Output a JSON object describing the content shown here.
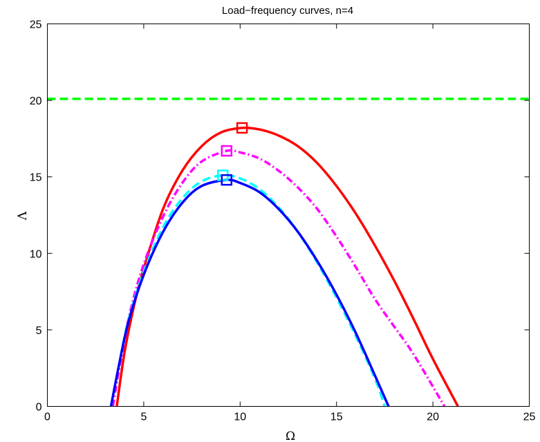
{
  "chart_data": {
    "type": "line",
    "title": "Load−frequency curves, n=4",
    "xlabel": "Ω",
    "ylabel": "Λ",
    "xlim": [
      0,
      25
    ],
    "ylim": [
      0,
      25
    ],
    "xticks": [
      "0",
      "5",
      "10",
      "15",
      "20",
      "25"
    ],
    "yticks": [
      "0",
      "5",
      "10",
      "15",
      "20",
      "25"
    ],
    "grid": false,
    "legend": "none",
    "series": [
      {
        "color": "#ff0000",
        "style": "solid",
        "points": [
          [
            3.6,
            0
          ],
          [
            4.0,
            3.5
          ],
          [
            4.5,
            6.6
          ],
          [
            5.0,
            9.0
          ],
          [
            6.0,
            12.9
          ],
          [
            7.0,
            15.4
          ],
          [
            8.0,
            17.0
          ],
          [
            9.0,
            17.9
          ],
          [
            10.1,
            18.2
          ],
          [
            11.0,
            18.1
          ],
          [
            12.0,
            17.7
          ],
          [
            13.0,
            17.0
          ],
          [
            14.0,
            15.9
          ],
          [
            15.0,
            14.4
          ],
          [
            16.0,
            12.6
          ],
          [
            17.0,
            10.5
          ],
          [
            18.0,
            8.2
          ],
          [
            19.0,
            5.7
          ],
          [
            20.0,
            3.1
          ],
          [
            21.3,
            0
          ]
        ],
        "marker": {
          "type": "square",
          "x": 10.1,
          "y": 18.2
        }
      },
      {
        "color": "#ff00ff",
        "style": "dashdot",
        "points": [
          [
            3.4,
            0
          ],
          [
            3.8,
            3.0
          ],
          [
            4.3,
            6.2
          ],
          [
            5.0,
            9.3
          ],
          [
            6.0,
            12.4
          ],
          [
            7.0,
            14.6
          ],
          [
            8.0,
            16.0
          ],
          [
            9.3,
            16.7
          ],
          [
            10.0,
            16.6
          ],
          [
            11.0,
            16.2
          ],
          [
            12.0,
            15.4
          ],
          [
            13.0,
            14.3
          ],
          [
            14.0,
            12.9
          ],
          [
            15.0,
            11.1
          ],
          [
            16.0,
            9.1
          ],
          [
            17.0,
            7.0
          ],
          [
            18.0,
            5.2
          ],
          [
            19.0,
            3.4
          ],
          [
            20.6,
            0
          ]
        ],
        "marker": {
          "type": "square",
          "x": 9.3,
          "y": 16.7
        }
      },
      {
        "color": "#00ffff",
        "style": "dashed",
        "points": [
          [
            3.3,
            0
          ],
          [
            3.7,
            2.6
          ],
          [
            4.2,
            5.6
          ],
          [
            5.0,
            8.8
          ],
          [
            6.0,
            11.7
          ],
          [
            7.0,
            13.6
          ],
          [
            8.0,
            14.7
          ],
          [
            9.1,
            15.1
          ],
          [
            10.0,
            14.9
          ],
          [
            11.0,
            14.2
          ],
          [
            12.0,
            13.0
          ],
          [
            13.0,
            11.4
          ],
          [
            14.0,
            9.4
          ],
          [
            15.0,
            7.1
          ],
          [
            16.0,
            4.6
          ],
          [
            17.0,
            1.8
          ],
          [
            17.5,
            0
          ]
        ],
        "marker": {
          "type": "square",
          "x": 9.1,
          "y": 15.1
        }
      },
      {
        "color": "#0000ff",
        "style": "solid",
        "points": [
          [
            3.3,
            0
          ],
          [
            3.7,
            2.6
          ],
          [
            4.2,
            5.5
          ],
          [
            5.0,
            8.6
          ],
          [
            6.0,
            11.4
          ],
          [
            7.0,
            13.3
          ],
          [
            8.0,
            14.4
          ],
          [
            9.3,
            14.8
          ],
          [
            10.0,
            14.6
          ],
          [
            11.0,
            14.0
          ],
          [
            12.0,
            12.9
          ],
          [
            13.0,
            11.4
          ],
          [
            14.0,
            9.5
          ],
          [
            15.0,
            7.3
          ],
          [
            16.0,
            4.8
          ],
          [
            17.0,
            2.0
          ],
          [
            17.7,
            0
          ]
        ],
        "marker": {
          "type": "square",
          "x": 9.3,
          "y": 14.8
        }
      },
      {
        "color": "#00ff00",
        "style": "dashed",
        "points": [
          [
            0,
            20.1
          ],
          [
            25,
            20.1
          ]
        ]
      }
    ]
  }
}
